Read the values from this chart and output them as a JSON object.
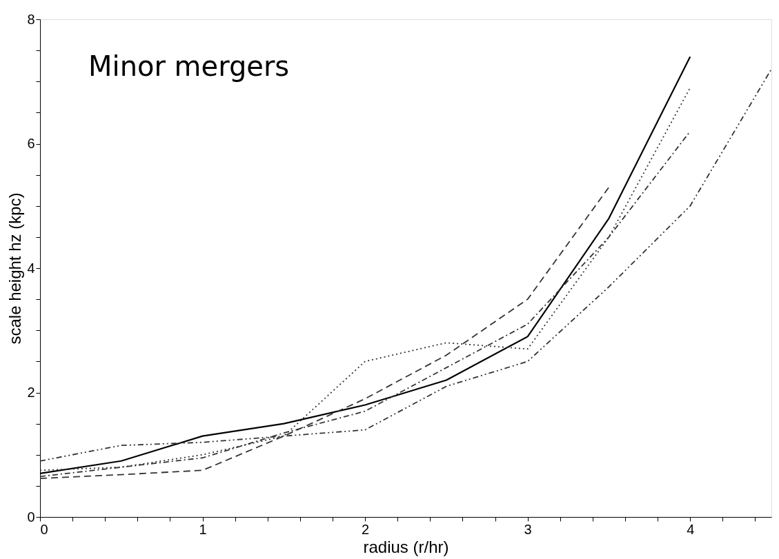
{
  "chart_data": {
    "type": "line",
    "xlabel": "radius (r/hr)",
    "ylabel": "scale height  hz (kpc)",
    "annotations": [
      "Minor mergers"
    ],
    "xlim": [
      0,
      4.5
    ],
    "ylim": [
      0,
      8
    ],
    "xticks": [
      0,
      {
        "value": 0.2,
        "label": null
      },
      {
        "value": 0.4,
        "label": null
      },
      {
        "value": 0.6,
        "label": null
      },
      {
        "value": 0.8,
        "label": null
      },
      1,
      {
        "value": 1.2,
        "label": null
      },
      {
        "value": 1.4,
        "label": null
      },
      {
        "value": 1.6,
        "label": null
      },
      {
        "value": 1.8,
        "label": null
      },
      2,
      {
        "value": 2.2,
        "label": null
      },
      {
        "value": 2.4,
        "label": null
      },
      {
        "value": 2.6,
        "label": null
      },
      {
        "value": 2.8,
        "label": null
      },
      3,
      {
        "value": 3.2,
        "label": null
      },
      {
        "value": 3.4,
        "label": null
      },
      {
        "value": 3.6,
        "label": null
      },
      {
        "value": 3.8,
        "label": null
      },
      4,
      {
        "value": 4.2,
        "label": null
      },
      {
        "value": 4.4,
        "label": null
      }
    ],
    "yticks": [
      0,
      {
        "value": 0.5,
        "label": null
      },
      {
        "value": 1,
        "label": null
      },
      {
        "value": 1.5,
        "label": null
      },
      2,
      {
        "value": 2.5,
        "label": null
      },
      {
        "value": 3,
        "label": null
      },
      {
        "value": 3.5,
        "label": null
      },
      4,
      {
        "value": 4.5,
        "label": null
      },
      {
        "value": 5,
        "label": null
      },
      {
        "value": 5.5,
        "label": null
      },
      6,
      {
        "value": 6.5,
        "label": null
      },
      {
        "value": 7,
        "label": null
      },
      {
        "value": 7.5,
        "label": null
      },
      8
    ],
    "grid": false,
    "marker": "none",
    "series": [
      {
        "color": "#000000",
        "line_style": "solid",
        "x": [
          0,
          0.5,
          1,
          1.5,
          2,
          2.5,
          3,
          3.5,
          4
        ],
        "values": [
          0.7,
          0.9,
          1.3,
          1.5,
          1.8,
          2.2,
          2.9,
          4.8,
          7.4
        ]
      },
      {
        "color": "#333333",
        "line_style": "dashed",
        "x": [
          0,
          0.5,
          1,
          1.5,
          2,
          2.5,
          3,
          3.5
        ],
        "values": [
          0.62,
          0.68,
          0.75,
          1.3,
          1.9,
          2.6,
          3.5,
          5.3
        ]
      },
      {
        "color": "#333333",
        "line_style": "dotted",
        "x": [
          0,
          0.5,
          1,
          1.5,
          2,
          2.5,
          3,
          3.5,
          4
        ],
        "values": [
          0.75,
          0.8,
          1.0,
          1.3,
          2.5,
          2.8,
          2.7,
          4.5,
          6.9
        ]
      },
      {
        "color": "#333333",
        "line_style": "dashdot",
        "x": [
          0,
          0.5,
          1,
          1.5,
          2,
          2.5,
          3,
          3.5,
          4
        ],
        "values": [
          0.65,
          0.8,
          0.95,
          1.35,
          1.7,
          2.4,
          3.1,
          4.5,
          6.2
        ]
      },
      {
        "color": "#333333",
        "line_style": "dashdotdot",
        "x": [
          0,
          0.5,
          1,
          1.5,
          2,
          2.5,
          3,
          3.5,
          4,
          4.5
        ],
        "values": [
          0.9,
          1.15,
          1.2,
          1.3,
          1.4,
          2.1,
          2.5,
          3.7,
          5.0,
          7.2
        ]
      }
    ]
  }
}
